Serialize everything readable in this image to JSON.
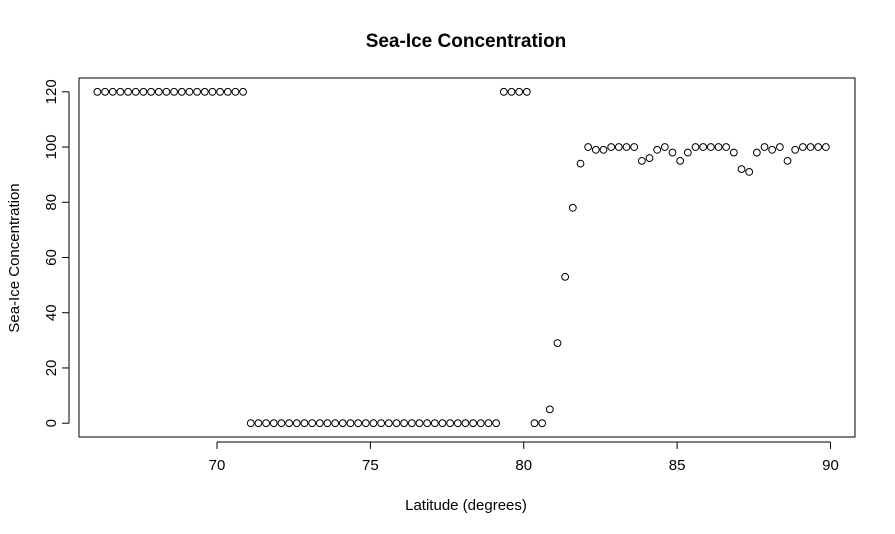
{
  "chart_data": {
    "type": "scatter",
    "title": "Sea-Ice Concentration",
    "xlabel": "Latitude (degrees)",
    "ylabel": "Sea-Ice Concentration",
    "xlim": [
      65.5,
      90.8
    ],
    "ylim": [
      -5,
      125
    ],
    "xticks": [
      "70",
      "75",
      "80",
      "85",
      "90"
    ],
    "yticks": [
      "0",
      "20",
      "40",
      "60",
      "80",
      "100",
      "120"
    ],
    "grid": false,
    "legend": "none",
    "marker": "open-circle",
    "point_color": "#000000",
    "x": [
      66.1,
      66.35,
      66.6,
      66.85,
      67.1,
      67.35,
      67.6,
      67.85,
      68.1,
      68.35,
      68.6,
      68.85,
      69.1,
      69.35,
      69.6,
      69.85,
      70.1,
      70.35,
      70.6,
      70.85,
      71.1,
      71.35,
      71.6,
      71.85,
      72.1,
      72.35,
      72.6,
      72.85,
      73.1,
      73.35,
      73.6,
      73.85,
      74.1,
      74.35,
      74.6,
      74.85,
      75.1,
      75.35,
      75.6,
      75.85,
      76.1,
      76.35,
      76.6,
      76.85,
      77.1,
      77.35,
      77.6,
      77.85,
      78.1,
      78.35,
      78.6,
      78.85,
      79.1,
      79.35,
      79.6,
      79.85,
      80.1,
      80.35,
      80.6,
      80.85,
      81.1,
      81.35,
      81.6,
      81.85,
      82.1,
      82.35,
      82.6,
      82.85,
      83.1,
      83.35,
      83.6,
      83.85,
      84.1,
      84.35,
      84.6,
      84.85,
      85.1,
      85.35,
      85.6,
      85.85,
      86.1,
      86.35,
      86.6,
      86.85,
      87.1,
      87.35,
      87.6,
      87.85,
      88.1,
      88.35,
      88.6,
      88.85,
      89.1,
      89.35,
      89.6,
      89.85
    ],
    "y": [
      120,
      120,
      120,
      120,
      120,
      120,
      120,
      120,
      120,
      120,
      120,
      120,
      120,
      120,
      120,
      120,
      120,
      120,
      120,
      120,
      0,
      0,
      0,
      0,
      0,
      0,
      0,
      0,
      0,
      0,
      0,
      0,
      0,
      0,
      0,
      0,
      0,
      0,
      0,
      0,
      0,
      0,
      0,
      0,
      0,
      0,
      0,
      0,
      0,
      0,
      0,
      0,
      0,
      120,
      120,
      120,
      120,
      0,
      0,
      5,
      29,
      53,
      78,
      94,
      100,
      99,
      99,
      100,
      100,
      100,
      100,
      95,
      96,
      99,
      100,
      98,
      95,
      98,
      100,
      100,
      100,
      100,
      100,
      98,
      92,
      91,
      98,
      100,
      99,
      100,
      95,
      99,
      100,
      100,
      100,
      100
    ]
  }
}
